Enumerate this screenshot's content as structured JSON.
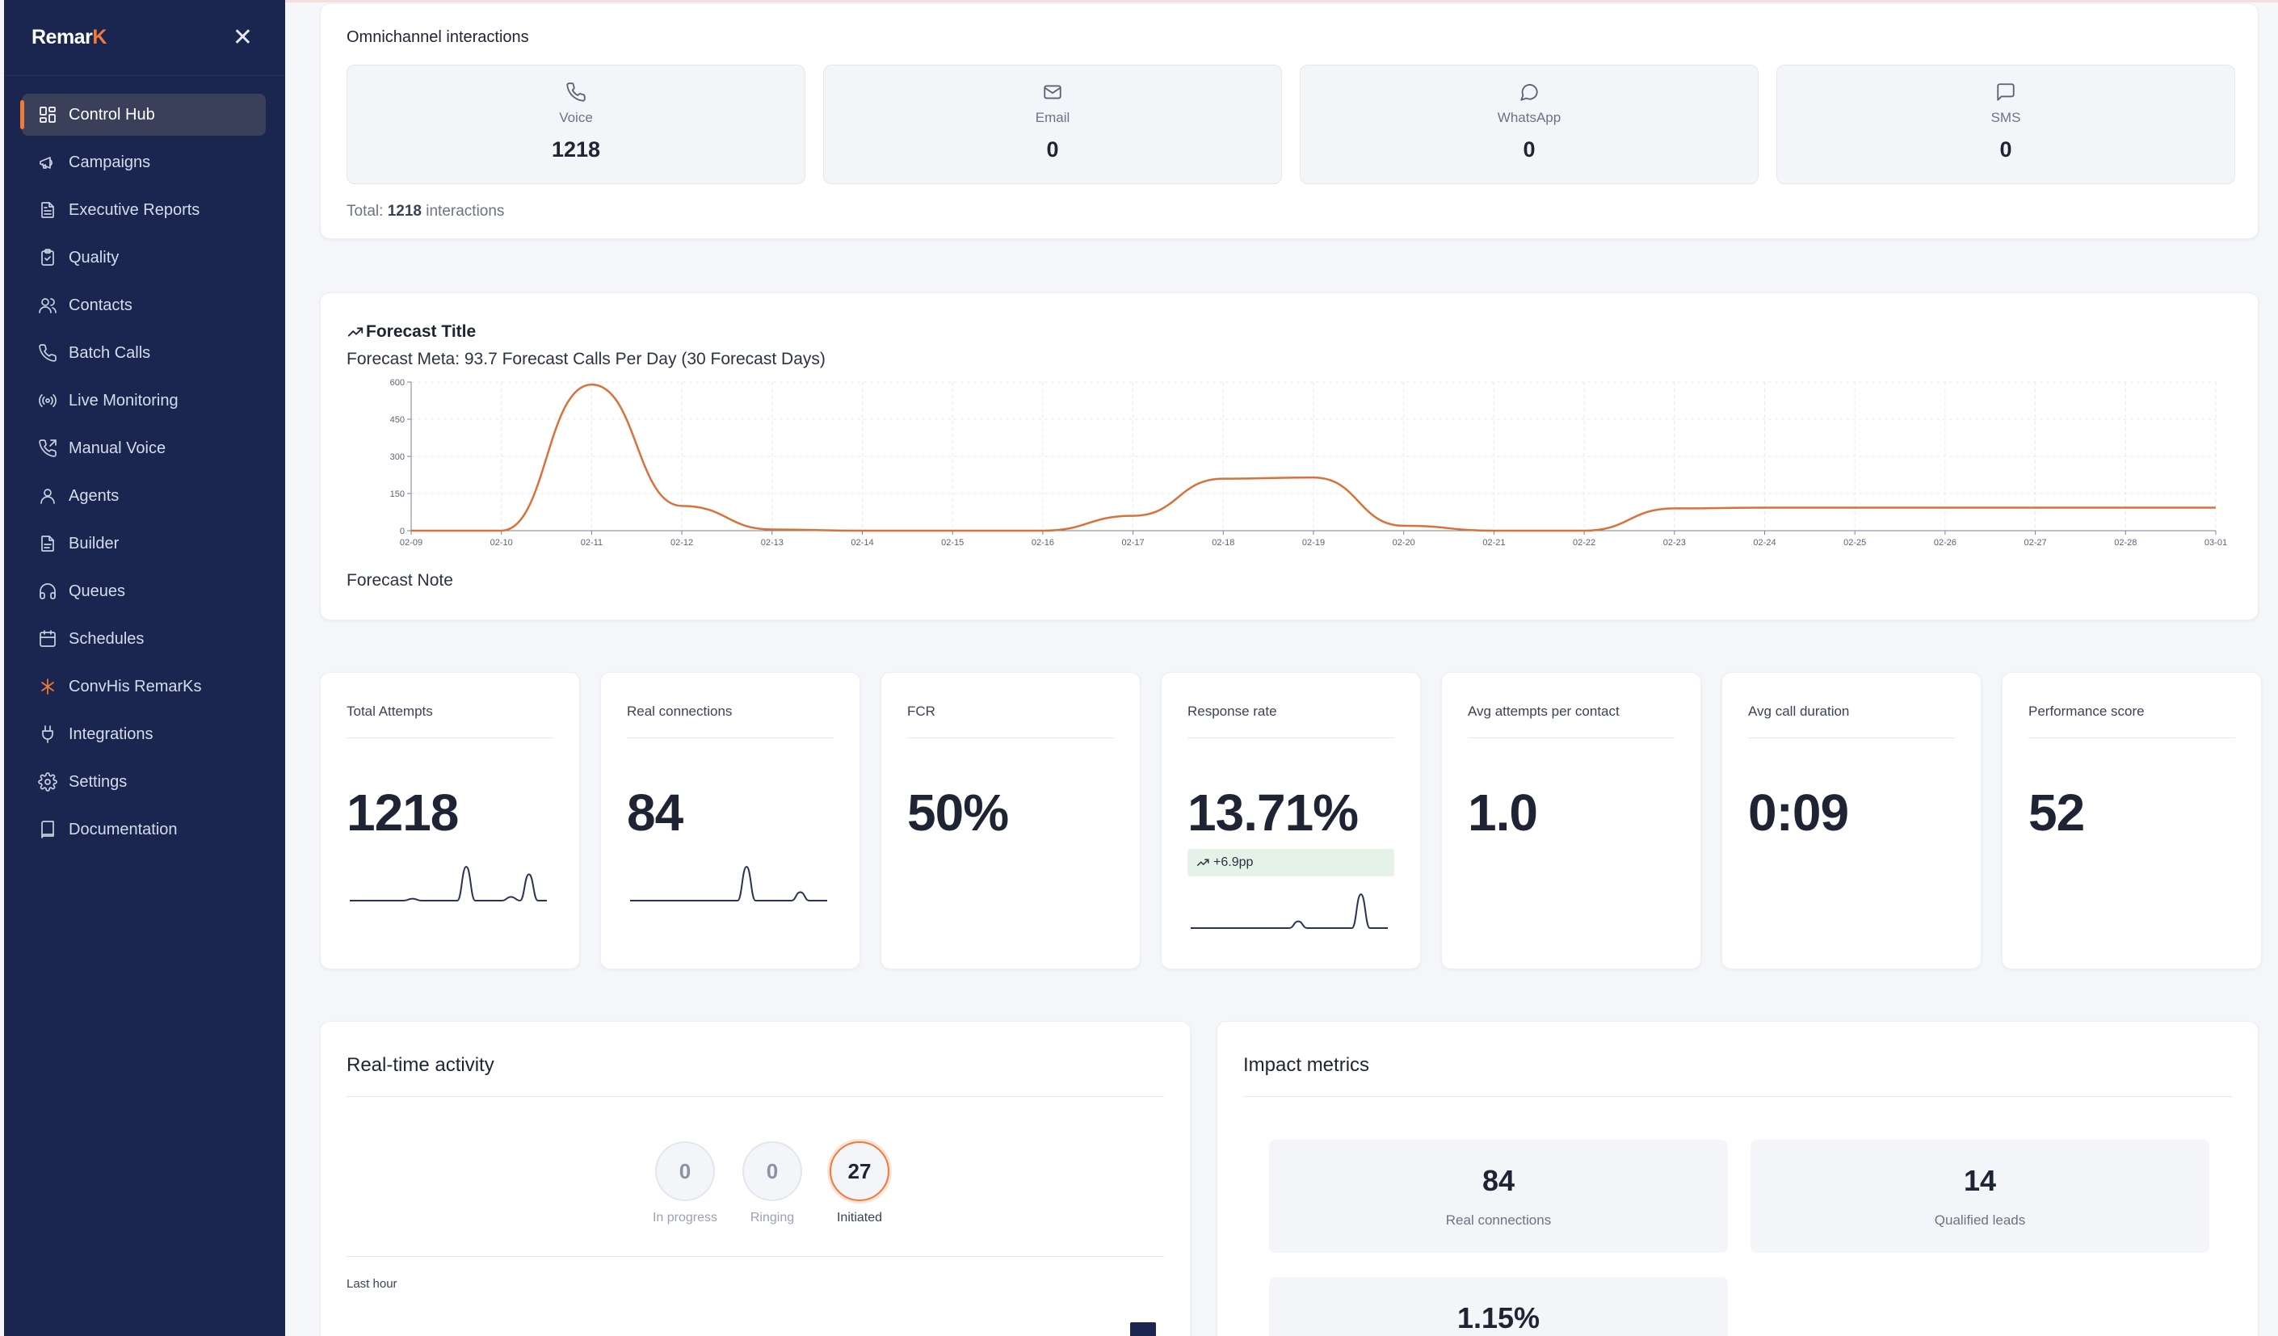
{
  "brand": {
    "name_main": "Remar",
    "name_accent": "K"
  },
  "nav": [
    {
      "label": "Control Hub",
      "icon": "dashboard-icon"
    },
    {
      "label": "Campaigns",
      "icon": "megaphone-icon"
    },
    {
      "label": "Executive Reports",
      "icon": "document-icon"
    },
    {
      "label": "Quality",
      "icon": "clipboard-check-icon"
    },
    {
      "label": "Contacts",
      "icon": "users-icon"
    },
    {
      "label": "Batch Calls",
      "icon": "phone-icon"
    },
    {
      "label": "Live Monitoring",
      "icon": "broadcast-icon"
    },
    {
      "label": "Manual Voice",
      "icon": "phone-outgoing-icon"
    },
    {
      "label": "Agents",
      "icon": "user-icon"
    },
    {
      "label": "Builder",
      "icon": "file-icon"
    },
    {
      "label": "Queues",
      "icon": "headphones-icon"
    },
    {
      "label": "Schedules",
      "icon": "calendar-icon"
    },
    {
      "label": "ConvHis RemarKs",
      "icon": "brand-k-icon"
    },
    {
      "label": "Integrations",
      "icon": "plug-icon"
    },
    {
      "label": "Settings",
      "icon": "gear-icon"
    },
    {
      "label": "Documentation",
      "icon": "book-icon"
    }
  ],
  "omnichannel": {
    "title": "Omnichannel interactions",
    "channels": [
      {
        "name": "Voice",
        "value": "1218",
        "icon": "phone-icon"
      },
      {
        "name": "Email",
        "value": "0",
        "icon": "mail-icon"
      },
      {
        "name": "WhatsApp",
        "value": "0",
        "icon": "chat-bubble-icon"
      },
      {
        "name": "SMS",
        "value": "0",
        "icon": "message-square-icon"
      }
    ],
    "total_prefix": "Total:",
    "total_value": "1218",
    "total_suffix": "interactions"
  },
  "forecast": {
    "title": "Forecast Title",
    "meta": "Forecast Meta: 93.7 Forecast Calls Per Day (30 Forecast Days)",
    "note": "Forecast Note"
  },
  "chart_data": {
    "type": "line",
    "title": "Forecast Title",
    "x": [
      "02-09",
      "02-10",
      "02-11",
      "02-12",
      "02-13",
      "02-14",
      "02-15",
      "02-16",
      "02-17",
      "02-18",
      "02-19",
      "02-20",
      "02-21",
      "02-22",
      "02-23",
      "02-24",
      "02-25",
      "02-26",
      "02-27",
      "02-28",
      "03-01"
    ],
    "series": [
      {
        "values": [
          0,
          0,
          590,
          100,
          5,
          0,
          0,
          0,
          60,
          210,
          215,
          20,
          0,
          0,
          90,
          93,
          93,
          93,
          93,
          93,
          93
        ]
      }
    ],
    "yticks": [
      0,
      150,
      300,
      450,
      600
    ],
    "ylim": [
      0,
      600
    ],
    "grid": true,
    "line_color": "#d9713a"
  },
  "kpis": [
    {
      "title": "Total Attempts",
      "value": "1218",
      "spark": [
        0,
        0,
        0,
        0,
        0,
        0,
        0,
        1,
        0,
        0,
        0,
        0,
        0,
        18,
        0,
        0,
        0,
        0,
        2,
        0,
        14,
        0,
        0
      ]
    },
    {
      "title": "Real connections",
      "value": "84",
      "spark": [
        0,
        0,
        0,
        0,
        0,
        0,
        0,
        0,
        0,
        0,
        0,
        0,
        0,
        16,
        0,
        0,
        0,
        0,
        0,
        4,
        0,
        0,
        0
      ]
    },
    {
      "title": "FCR",
      "value": "50%"
    },
    {
      "title": "Response rate",
      "value": "13.71%",
      "delta": "+6.9pp",
      "spark": [
        0,
        0,
        0,
        0,
        0,
        0,
        0,
        0,
        0,
        0,
        0,
        0,
        3,
        0,
        0,
        0,
        0,
        0,
        0,
        15,
        0,
        0,
        0
      ]
    },
    {
      "title": "Avg attempts per contact",
      "value": "1.0"
    },
    {
      "title": "Avg call duration",
      "value": "0:09"
    },
    {
      "title": "Performance score",
      "value": "52"
    }
  ],
  "realtime": {
    "title": "Real-time activity",
    "states": [
      {
        "value": "0",
        "label": "In progress"
      },
      {
        "value": "0",
        "label": "Ringing"
      },
      {
        "value": "27",
        "label": "Initiated"
      }
    ],
    "last_hour": "Last hour"
  },
  "impact": {
    "title": "Impact metrics",
    "tiles": [
      {
        "value": "84",
        "label": "Real connections"
      },
      {
        "value": "14",
        "label": "Qualified leads"
      },
      {
        "value": "1.15%",
        "label": ""
      }
    ]
  },
  "colors": {
    "sidebar": "#1a2650",
    "accent": "#f07a38",
    "line": "#d9713a"
  }
}
